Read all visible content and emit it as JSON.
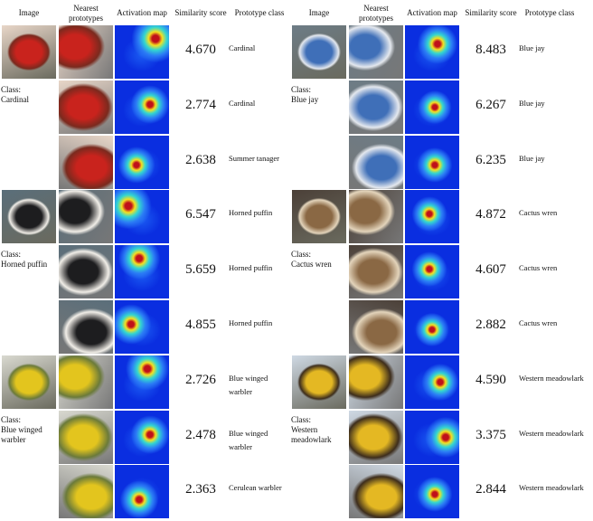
{
  "panels": [
    {
      "columns": [
        "Image",
        "Nearest prototypes",
        "Activation map",
        "Similarity score",
        "Prototype class"
      ],
      "groups": [
        {
          "class_prefix": "Class:",
          "class_name": "Cardinal",
          "rows": [
            {
              "score": "4.670",
              "prototype_class": "Cardinal"
            },
            {
              "score": "2.774",
              "prototype_class": "Cardinal"
            },
            {
              "score": "2.638",
              "prototype_class": "Summer tanager"
            }
          ]
        },
        {
          "class_prefix": "Class:",
          "class_name": "Horned puffin",
          "rows": [
            {
              "score": "6.547",
              "prototype_class": "Horned puffin"
            },
            {
              "score": "5.659",
              "prototype_class": "Horned puffin"
            },
            {
              "score": "4.855",
              "prototype_class": "Horned puffin"
            }
          ]
        },
        {
          "class_prefix": "Class:",
          "class_name": "Blue winged warbler",
          "rows": [
            {
              "score": "2.726",
              "prototype_class": "Blue winged warbler"
            },
            {
              "score": "2.478",
              "prototype_class": "Blue winged warbler"
            },
            {
              "score": "2.363",
              "prototype_class": "Cerulean warbler"
            }
          ]
        }
      ]
    },
    {
      "columns": [
        "Image",
        "Nearest prototypes",
        "Activation map",
        "Similarity score",
        "Prototype class"
      ],
      "groups": [
        {
          "class_prefix": "Class:",
          "class_name": "Blue jay",
          "rows": [
            {
              "score": "8.483",
              "prototype_class": "Blue jay"
            },
            {
              "score": "6.267",
              "prototype_class": "Blue jay"
            },
            {
              "score": "6.235",
              "prototype_class": "Blue jay"
            }
          ]
        },
        {
          "class_prefix": "Class:",
          "class_name": "Cactus wren",
          "rows": [
            {
              "score": "4.872",
              "prototype_class": "Cactus wren"
            },
            {
              "score": "4.607",
              "prototype_class": "Cactus wren"
            },
            {
              "score": "2.882",
              "prototype_class": "Cactus wren"
            }
          ]
        },
        {
          "class_prefix": "Class:",
          "class_name": "Western meadowlark",
          "rows": [
            {
              "score": "4.590",
              "prototype_class": "Western meadowlark"
            },
            {
              "score": "3.375",
              "prototype_class": "Western meadowlark"
            },
            {
              "score": "2.844",
              "prototype_class": "Western meadowlark"
            }
          ]
        }
      ]
    }
  ]
}
